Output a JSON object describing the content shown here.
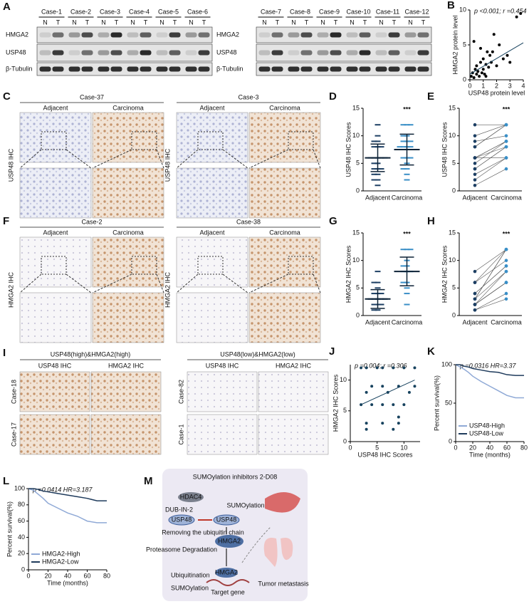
{
  "figure": {
    "A": {
      "label": "A",
      "lanes": [
        "N",
        "T"
      ],
      "left": {
        "cases": [
          "Case-1",
          "Case-2",
          "Case-3",
          "Case-4",
          "Case-5",
          "Case-6"
        ],
        "rows": [
          "HMGA2",
          "USP48",
          "β-Tubulin"
        ]
      },
      "right": {
        "cases": [
          "Case-7",
          "Case-8",
          "Case-9",
          "Case-10",
          "Case-11",
          "Case-12"
        ],
        "rows": [
          "HMGA2",
          "USP48",
          "β-Tubulin"
        ]
      }
    },
    "C": {
      "label": "C",
      "stain": "USP48 IHC",
      "groups": [
        {
          "case": "Case-37",
          "columns": [
            "Adjacent",
            "Carcinoma"
          ]
        },
        {
          "case": "Case-3",
          "columns": [
            "Adjacent",
            "Carcinoma"
          ]
        }
      ]
    },
    "F": {
      "label": "F",
      "stain": "HMGA2 IHC",
      "groups": [
        {
          "case": "Case-2",
          "columns": [
            "Adjacent",
            "Carcinoma"
          ]
        },
        {
          "case": "Case-38",
          "columns": [
            "Adjacent",
            "Carcinoma"
          ]
        }
      ]
    },
    "I": {
      "label": "I",
      "groups": [
        {
          "title": "USP48(high)&HMGA2(high)",
          "columns": [
            "USP48 IHC",
            "HMGA2 IHC"
          ],
          "rows": [
            "Case-18",
            "Case-17"
          ]
        },
        {
          "title": "USP48(low)&HMGA2(low)",
          "columns": [
            "USP48 IHC",
            "HMGA2 IHC"
          ],
          "rows": [
            "Case-82",
            "Case-1"
          ]
        }
      ]
    },
    "M": {
      "label": "M",
      "texts": [
        "SUMOylation inhibitors 2-D08",
        "HDAC4",
        "SUMOylation",
        "DUB-IN-2",
        "USP48",
        "USP48",
        "Removing the ubiquitin chain",
        "Proteasome Degradation",
        "HMGA2",
        "HMGA2",
        "Ubiquitination",
        "SUMOylation",
        "Target gene",
        "Tumor metastasis"
      ]
    }
  },
  "chart_data": [
    {
      "panel": "B",
      "type": "scatter",
      "x": [
        0.1,
        0.2,
        0.3,
        0.4,
        0.5,
        0.5,
        0.6,
        0.7,
        0.8,
        0.9,
        1.0,
        1.0,
        1.1,
        1.2,
        1.3,
        1.4,
        1.5,
        1.6,
        1.8,
        2.0,
        2.2,
        2.5,
        2.8,
        3.0,
        3.5,
        3.8,
        0.3,
        0.8,
        1.2,
        1.7
      ],
      "values": [
        0.5,
        1.0,
        0.3,
        1.5,
        0.8,
        2.0,
        1.2,
        0.5,
        2.5,
        1.0,
        3.0,
        1.5,
        0.8,
        2.2,
        4.0,
        1.8,
        3.5,
        2.5,
        6.5,
        2.0,
        5.0,
        3.0,
        3.5,
        2.5,
        9.0,
        9.5,
        5.5,
        4.5,
        0.5,
        4.0
      ],
      "color": "#000000",
      "xlim": [
        0,
        4
      ],
      "ylim": [
        0,
        10
      ],
      "xticks": [
        0,
        1,
        2,
        3,
        4
      ],
      "yticks": [
        0,
        5,
        10
      ],
      "x_label": "USP48 protein level",
      "y_label": "HMGA2 protein level",
      "annotation": "p <0.001; r =0.454",
      "trend": {
        "x": [
          0,
          4
        ],
        "y": [
          0.8,
          5.3
        ]
      }
    },
    {
      "panel": "D",
      "type": "dot",
      "categories": [
        "Adjacent",
        "Carcinoma"
      ],
      "groups": [
        [
          1,
          2,
          2,
          3,
          3,
          4,
          4,
          4,
          5,
          5,
          6,
          6,
          6,
          6,
          6,
          8,
          8,
          8,
          9,
          9,
          10,
          12
        ],
        [
          2,
          3,
          4,
          4,
          5,
          6,
          6,
          6,
          8,
          8,
          8,
          8,
          9,
          9,
          9,
          10,
          10,
          12,
          12,
          12
        ]
      ],
      "means": [
        6,
        7.5
      ],
      "sds": [
        2.5,
        2.8
      ],
      "colors": [
        "#1d3f63",
        "#3a8fc7"
      ],
      "ylim": [
        0,
        15
      ],
      "yticks": [
        0,
        5,
        10,
        15
      ],
      "y_label": "USP48 IHC Scores",
      "significance": "***"
    },
    {
      "panel": "E",
      "type": "paired",
      "categories": [
        "Adjacent",
        "Carcinoma"
      ],
      "groups": [
        [
          6,
          4,
          8,
          12,
          2,
          6,
          9,
          3,
          5,
          10,
          1,
          6,
          8,
          4,
          6
        ],
        [
          9,
          8,
          12,
          12,
          6,
          8,
          10,
          6,
          9,
          12,
          4,
          9,
          12,
          8,
          6
        ]
      ],
      "colors": [
        "#1d3f63",
        "#3a8fc7"
      ],
      "ylim": [
        0,
        15
      ],
      "yticks": [
        0,
        5,
        10,
        15
      ],
      "y_label": "USP48 IHC Scores",
      "significance": "***"
    },
    {
      "panel": "G",
      "type": "dot",
      "categories": [
        "Adjacent",
        "Carcinoma"
      ],
      "groups": [
        [
          1,
          1,
          2,
          2,
          2,
          3,
          3,
          3,
          3,
          3,
          4,
          4,
          4,
          5,
          6,
          6,
          8
        ],
        [
          2,
          4,
          5,
          6,
          6,
          8,
          8,
          8,
          9,
          9,
          10,
          12,
          12,
          12
        ]
      ],
      "means": [
        3,
        8
      ],
      "sds": [
        1.7,
        2.6
      ],
      "colors": [
        "#1d3f63",
        "#3a8fc7"
      ],
      "ylim": [
        0,
        15
      ],
      "yticks": [
        0,
        5,
        10,
        15
      ],
      "y_label": "HMGA2 IHC Scores",
      "significance": "***"
    },
    {
      "panel": "H",
      "type": "paired",
      "categories": [
        "Adjacent",
        "Carcinoma"
      ],
      "groups": [
        [
          1,
          2,
          3,
          2,
          4,
          3,
          6,
          8,
          2,
          3,
          4,
          1,
          6,
          2
        ],
        [
          4,
          8,
          12,
          6,
          9,
          12,
          10,
          12,
          6,
          8,
          9,
          3,
          12,
          6
        ]
      ],
      "colors": [
        "#1d3f63",
        "#3a8fc7"
      ],
      "ylim": [
        0,
        15
      ],
      "yticks": [
        0,
        5,
        10,
        15
      ],
      "y_label": "HMGA2 IHC Scores",
      "significance": "***"
    },
    {
      "panel": "J",
      "type": "scatter",
      "x": [
        2,
        2,
        3,
        3,
        3,
        4,
        4,
        5,
        6,
        6,
        6,
        7,
        8,
        8,
        8,
        9,
        9,
        10,
        10,
        11,
        12,
        12,
        3,
        6,
        9
      ],
      "values": [
        12,
        6,
        3,
        2,
        12,
        6,
        9,
        12,
        3,
        6,
        9,
        8,
        2,
        6,
        12,
        3,
        9,
        6,
        12,
        8,
        9,
        12,
        8,
        12,
        4
      ],
      "color": "#17425e",
      "xlim": [
        0,
        13
      ],
      "ylim": [
        0,
        12.5
      ],
      "xticks": [
        0,
        5,
        10
      ],
      "yticks": [
        0,
        5,
        10
      ],
      "x_label": "USP48 IHC Scores",
      "y_label": "HMGA2 IHC Scores",
      "annotation": "p =0.004; r =0.306",
      "trend": {
        "x": [
          2,
          12
        ],
        "y": [
          6,
          10
        ]
      }
    },
    {
      "panel": "K",
      "type": "survival",
      "x": [
        0,
        5,
        10,
        15,
        20,
        30,
        40,
        50,
        60,
        70,
        80
      ],
      "series": [
        {
          "name": "USP48-High",
          "color": "#8fa9d6",
          "values": [
            100,
            97,
            94,
            90,
            85,
            78,
            72,
            66,
            60,
            57,
            57
          ]
        },
        {
          "name": "USP48-Low",
          "color": "#1f3b5c",
          "values": [
            100,
            100,
            98,
            97,
            95,
            93,
            91,
            90,
            87,
            86,
            86
          ]
        }
      ],
      "xlim": [
        0,
        80
      ],
      "ylim": [
        0,
        100
      ],
      "xticks": [
        0,
        20,
        40,
        60,
        80
      ],
      "yticks": [
        0,
        50,
        100
      ],
      "x_label": "Time (months)",
      "y_label": "Percent survival(%)",
      "annotation": "p =0.0316  HR=3.37"
    },
    {
      "panel": "L",
      "type": "survival",
      "x": [
        0,
        5,
        10,
        15,
        20,
        30,
        40,
        50,
        60,
        70,
        80
      ],
      "series": [
        {
          "name": "HMGA2-High",
          "color": "#8fa9d6",
          "values": [
            100,
            98,
            93,
            88,
            82,
            76,
            70,
            66,
            60,
            58,
            58
          ]
        },
        {
          "name": "HMGA2-Low",
          "color": "#1f3b5c",
          "values": [
            100,
            100,
            99,
            97,
            96,
            94,
            92,
            90,
            88,
            85,
            85
          ]
        }
      ],
      "xlim": [
        0,
        80
      ],
      "ylim": [
        0,
        100
      ],
      "xticks": [
        0,
        20,
        40,
        60,
        80
      ],
      "yticks": [
        0,
        20,
        40,
        60,
        80,
        100
      ],
      "x_label": "Time (months)",
      "y_label": "Percent survival(%)",
      "annotation": "p =0.0414  HR=3.187"
    }
  ]
}
